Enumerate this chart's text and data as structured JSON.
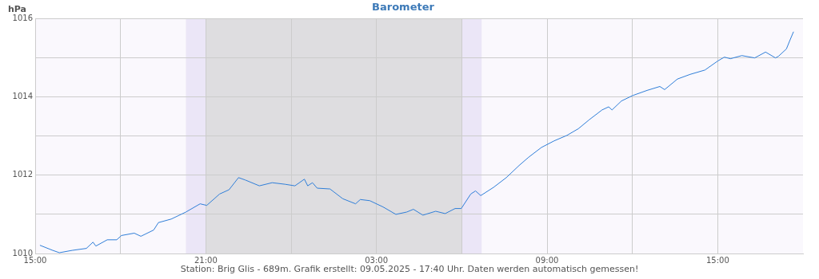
{
  "chart_data": {
    "type": "line",
    "title": "Barometer",
    "ylabel": "hPa",
    "annotations": [
      "Station: Brig Glis - 689m. Grafik erstellt: 09.05.2025 - 17:40 Uhr. Daten werden automatisch gemessen!"
    ],
    "xlim": [
      "2025-05-08T15:00",
      "2025-05-09T18:00"
    ],
    "xticks": [
      {
        "value": "2025-05-08T15:00",
        "label": "15:00"
      },
      {
        "value": "2025-05-08T18:00",
        "label": null
      },
      {
        "value": "2025-05-08T21:00",
        "label": "21:00"
      },
      {
        "value": "2025-05-09T00:00",
        "label": null
      },
      {
        "value": "2025-05-09T03:00",
        "label": "03:00"
      },
      {
        "value": "2025-05-09T06:00",
        "label": null
      },
      {
        "value": "2025-05-09T09:00",
        "label": "09:00"
      },
      {
        "value": "2025-05-09T12:00",
        "label": null
      },
      {
        "value": "2025-05-09T15:00",
        "label": "15:00"
      }
    ],
    "ylim": [
      1010,
      1016
    ],
    "yticks": [
      1010,
      {
        "value": 1011,
        "label": null
      },
      1012,
      {
        "value": 1013,
        "label": null
      },
      1014,
      {
        "value": 1015,
        "label": null
      },
      1016
    ],
    "grid": true,
    "legend": false,
    "marker": "none",
    "line_style": "solid",
    "bands": [
      {
        "axis": "x",
        "from": "2025-05-08T20:18",
        "to": "2025-05-09T06:42",
        "color": "#ebe6f7"
      },
      {
        "axis": "x",
        "from": "2025-05-08T21:00",
        "to": "2025-05-09T06:00",
        "color": "#dedde0"
      }
    ],
    "series": [
      {
        "color": "#2f7ed8",
        "x": [
          "2025-05-08T15:10",
          "2025-05-08T15:37",
          "2025-05-08T15:51",
          "2025-05-08T16:18",
          "2025-05-08T16:48",
          "2025-05-08T17:02",
          "2025-05-08T17:08",
          "2025-05-08T17:32",
          "2025-05-08T17:52",
          "2025-05-08T18:02",
          "2025-05-08T18:29",
          "2025-05-08T18:43",
          "2025-05-08T19:10",
          "2025-05-08T19:20",
          "2025-05-08T19:47",
          "2025-05-08T20:18",
          "2025-05-08T20:48",
          "2025-05-08T21:02",
          "2025-05-08T21:29",
          "2025-05-08T21:49",
          "2025-05-08T22:09",
          "2025-05-08T22:23",
          "2025-05-08T22:53",
          "2025-05-08T23:20",
          "2025-05-08T23:47",
          "2025-05-09T00:08",
          "2025-05-09T00:28",
          "2025-05-09T00:35",
          "2025-05-09T00:45",
          "2025-05-09T00:55",
          "2025-05-09T01:22",
          "2025-05-09T01:49",
          "2025-05-09T02:16",
          "2025-05-09T02:26",
          "2025-05-09T02:46",
          "2025-05-09T03:14",
          "2025-05-09T03:41",
          "2025-05-09T04:04",
          "2025-05-09T04:18",
          "2025-05-09T04:38",
          "2025-05-09T05:05",
          "2025-05-09T05:25",
          "2025-05-09T05:46",
          "2025-05-09T05:59",
          "2025-05-09T06:19",
          "2025-05-09T06:29",
          "2025-05-09T06:40",
          "2025-05-09T07:07",
          "2025-05-09T07:34",
          "2025-05-09T08:01",
          "2025-05-09T08:21",
          "2025-05-09T08:48",
          "2025-05-09T09:15",
          "2025-05-09T09:42",
          "2025-05-09T10:06",
          "2025-05-09T10:29",
          "2025-05-09T10:56",
          "2025-05-09T11:10",
          "2025-05-09T11:17",
          "2025-05-09T11:37",
          "2025-05-09T12:01",
          "2025-05-09T12:31",
          "2025-05-09T12:58",
          "2025-05-09T13:08",
          "2025-05-09T13:35",
          "2025-05-09T14:02",
          "2025-05-09T14:33",
          "2025-05-09T15:00",
          "2025-05-09T15:14",
          "2025-05-09T15:27",
          "2025-05-09T15:51",
          "2025-05-09T16:18",
          "2025-05-09T16:41",
          "2025-05-09T17:02",
          "2025-05-09T17:08",
          "2025-05-09T17:25",
          "2025-05-09T17:32",
          "2025-05-09T17:40"
        ],
        "values": [
          1010.21,
          1010.08,
          1010.02,
          1010.08,
          1010.13,
          1010.29,
          1010.19,
          1010.35,
          1010.35,
          1010.46,
          1010.52,
          1010.44,
          1010.6,
          1010.79,
          1010.88,
          1011.06,
          1011.27,
          1011.23,
          1011.52,
          1011.63,
          1011.94,
          1011.88,
          1011.73,
          1011.81,
          1011.77,
          1011.73,
          1011.9,
          1011.73,
          1011.81,
          1011.67,
          1011.65,
          1011.4,
          1011.27,
          1011.38,
          1011.35,
          1011.19,
          1011,
          1011.06,
          1011.13,
          1010.98,
          1011.08,
          1011.02,
          1011.15,
          1011.15,
          1011.52,
          1011.6,
          1011.48,
          1011.69,
          1011.94,
          1012.25,
          1012.46,
          1012.71,
          1012.88,
          1013.02,
          1013.19,
          1013.42,
          1013.67,
          1013.75,
          1013.67,
          1013.9,
          1014.04,
          1014.17,
          1014.27,
          1014.19,
          1014.46,
          1014.58,
          1014.69,
          1014.92,
          1015.02,
          1014.98,
          1015.06,
          1015,
          1015.15,
          1015,
          1015.04,
          1015.23,
          1015.44,
          1015.67
        ]
      }
    ]
  }
}
